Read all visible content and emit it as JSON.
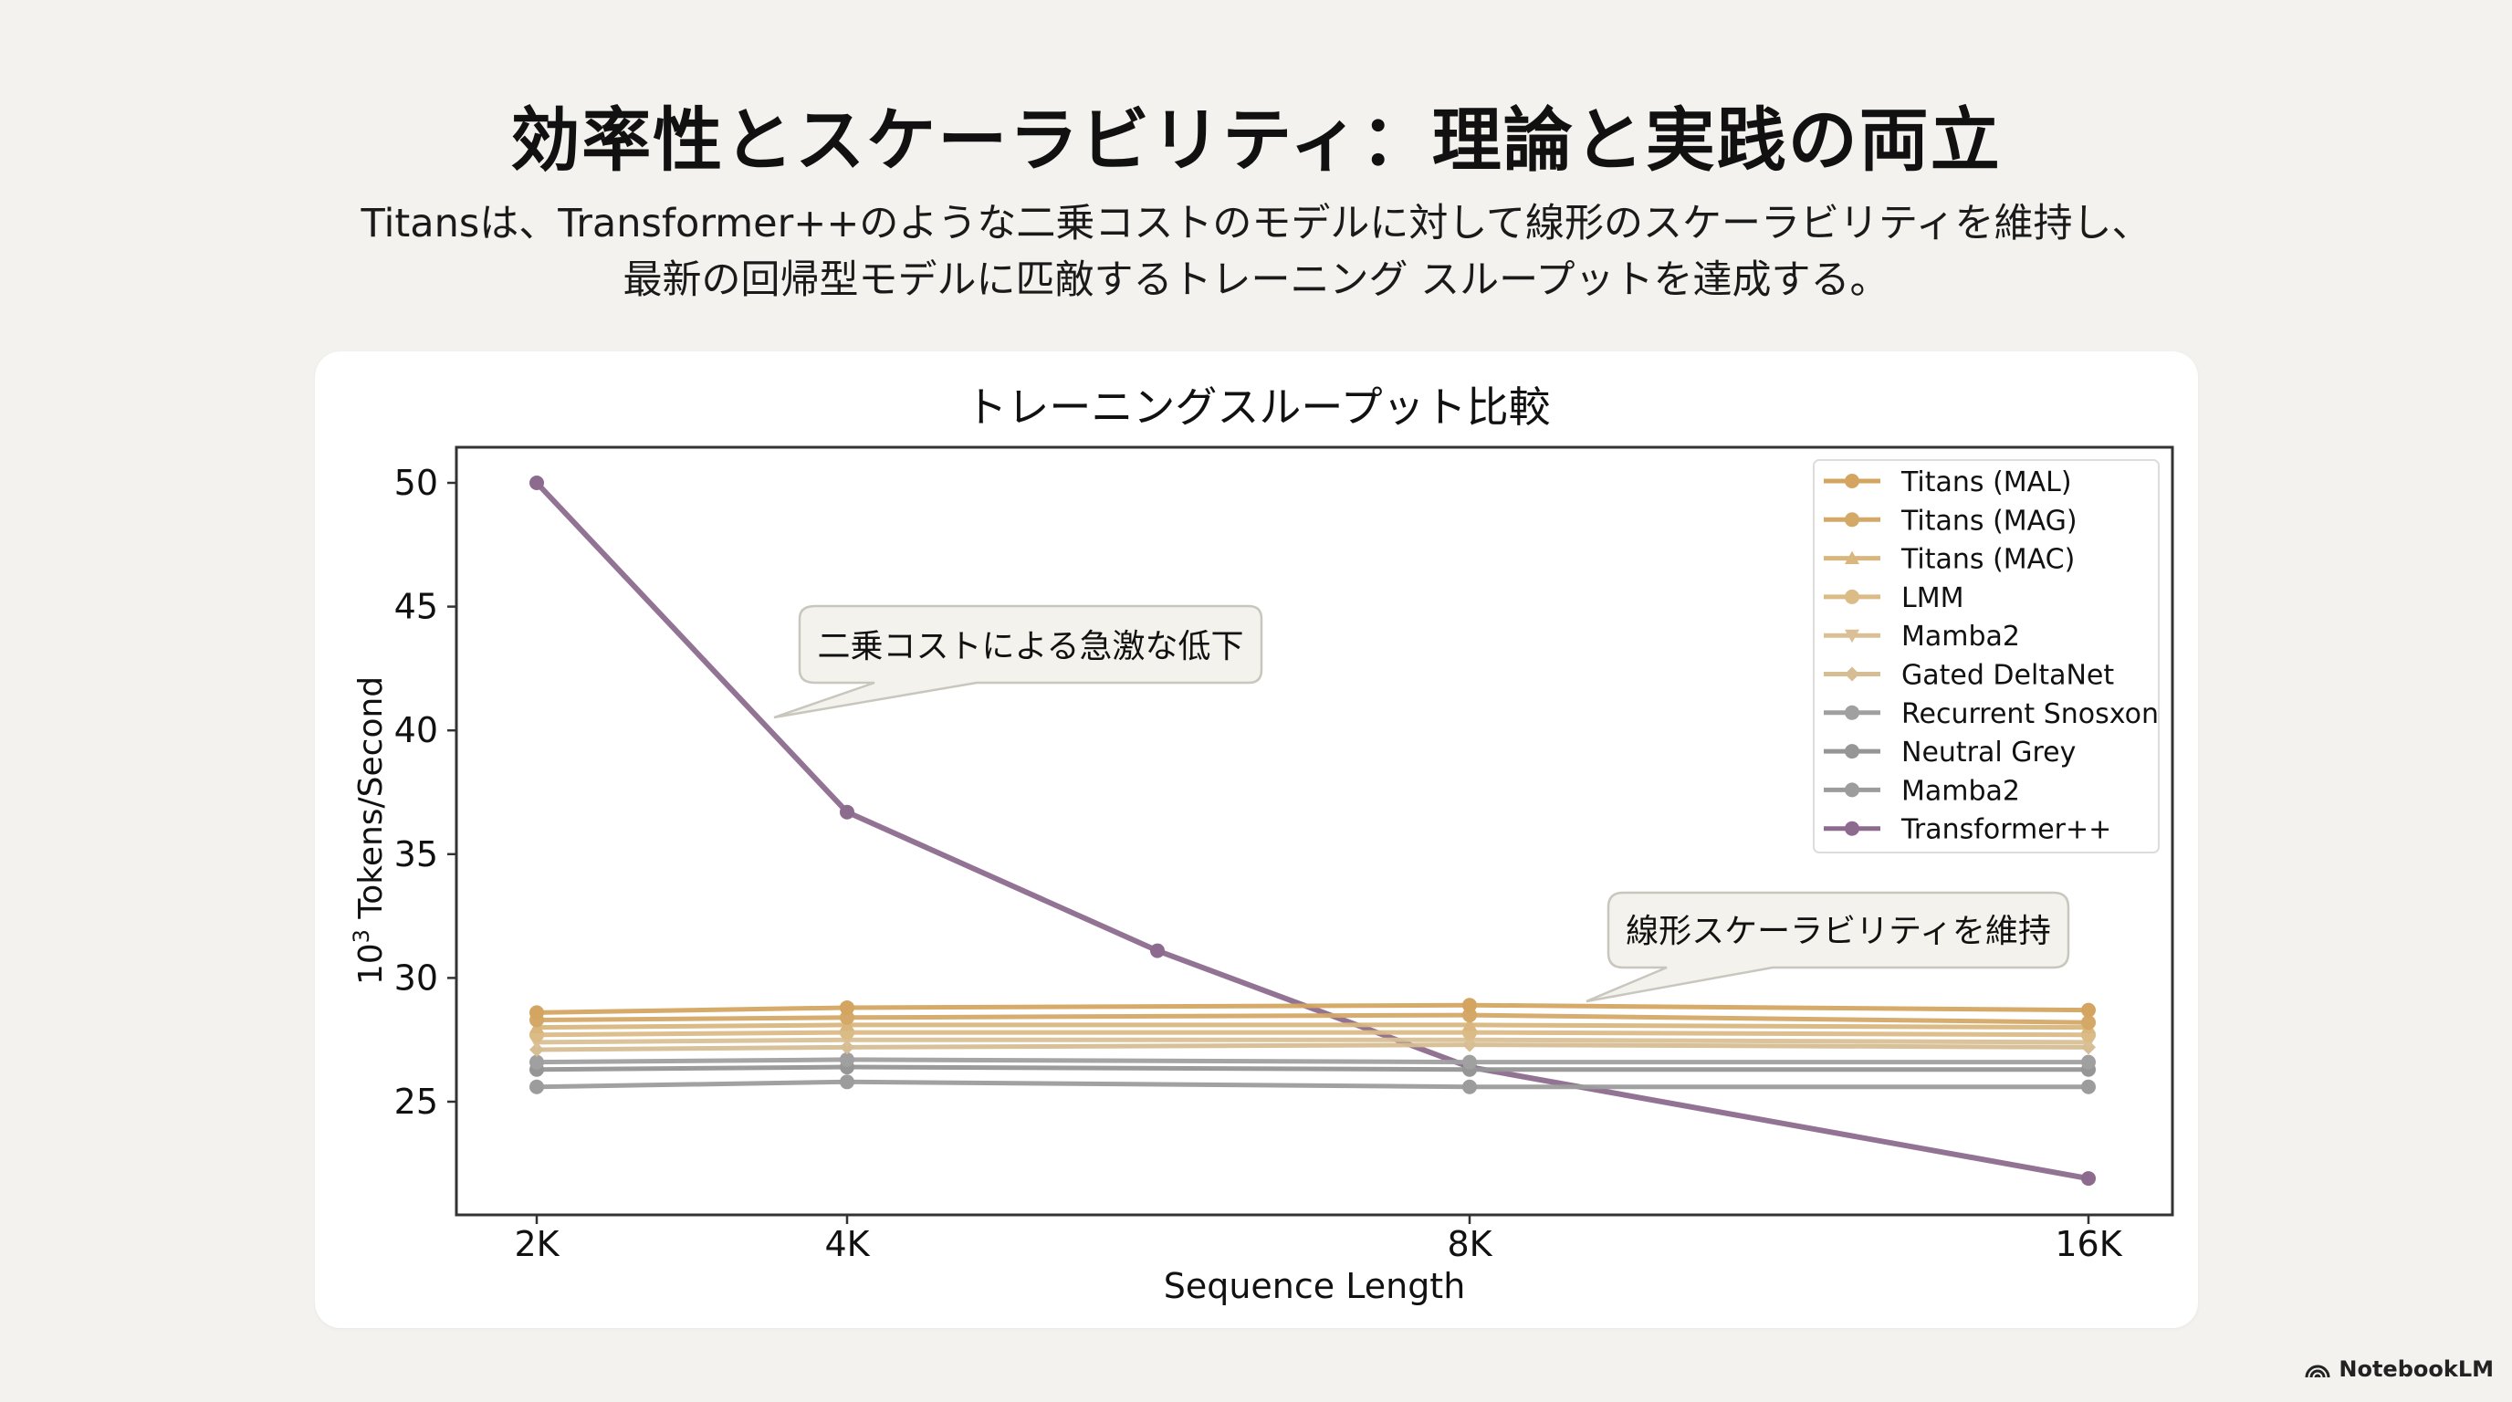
{
  "slide": {
    "title": "効率性とスケーラビリティ：理論と実践の両立",
    "subtitle_line1": "Titansは、Transformer++のような二乗コストのモデルに対して線形のスケーラビリティを維持し、",
    "subtitle_line2": "最新の回帰型モデルに匹敵するトレーニング スループットを達成する。"
  },
  "watermark": {
    "label": "NotebookLM",
    "icon": "notebooklm-logo-icon"
  },
  "colors": {
    "background": "#f3f2ee",
    "card": "#ffffff",
    "titans_orange": "#d4a865",
    "light_tan": "#d9bf8e",
    "grey": "#9a9a9a",
    "transformer_purple": "#8c6b8e",
    "axis": "#333333",
    "callout_bg": "#f3f2ec",
    "callout_border": "#c9c7bd"
  },
  "chart_data": {
    "type": "line",
    "title": "トレーニングスループット比較",
    "xlabel": "Sequence Length",
    "ylabel": "10³ Tokens/Second",
    "ylabel_base": "10",
    "ylabel_exp": "3",
    "ylabel_rest": " Tokens/Second",
    "x_ticks": [
      "2K",
      "4K",
      "8K",
      "16K"
    ],
    "y_ticks": [
      25,
      30,
      35,
      40,
      45,
      50
    ],
    "ylim": [
      20.4,
      51.2
    ],
    "grid": false,
    "legend_position": "upper right",
    "x": [
      "2K",
      "4K",
      "8K",
      "16K"
    ],
    "series": [
      {
        "name": "Titans (MAL)",
        "color": "#d4a560",
        "marker": "circle",
        "values": [
          28.6,
          28.8,
          28.9,
          28.7
        ]
      },
      {
        "name": "Titans (MAG)",
        "color": "#d4a867",
        "marker": "circle",
        "values": [
          28.3,
          28.4,
          28.5,
          28.2
        ]
      },
      {
        "name": "Titans (MAC)",
        "color": "#d8b67e",
        "marker": "triangle-up",
        "values": [
          28.0,
          28.1,
          28.1,
          28.0
        ]
      },
      {
        "name": "LMM",
        "color": "#dbbb86",
        "marker": "circle",
        "values": [
          27.7,
          27.8,
          27.8,
          27.7
        ]
      },
      {
        "name": "Mamba2",
        "color": "#d9c096",
        "marker": "triangle-down",
        "values": [
          27.4,
          27.5,
          27.5,
          27.4
        ]
      },
      {
        "name": "Gated DeltaNet",
        "color": "#d6bd94",
        "marker": "diamond",
        "values": [
          27.1,
          27.2,
          27.3,
          27.2
        ]
      },
      {
        "name": "Recurrent Snosxon",
        "color": "#a0a0a0",
        "marker": "circle",
        "values": [
          26.6,
          26.7,
          26.6,
          26.6
        ]
      },
      {
        "name": "Neutral Grey",
        "color": "#969696",
        "marker": "circle",
        "values": [
          26.3,
          26.4,
          26.3,
          26.3
        ]
      },
      {
        "name": "Mamba2",
        "color": "#9c9c9c",
        "marker": "circle",
        "values": [
          25.6,
          25.8,
          25.6,
          25.6
        ]
      },
      {
        "name": "Transformer++",
        "color": "#8c6b8e",
        "marker": "circle",
        "x": [
          "2K",
          "4K",
          "6K",
          "8K",
          "16K"
        ],
        "values": [
          50.0,
          36.7,
          31.1,
          26.4,
          21.9
        ]
      }
    ],
    "annotations": [
      {
        "text": "二乗コストによる急激な低下",
        "target": "Transformer++ between 2K and 4K"
      },
      {
        "text": "線形スケーラビリティを維持",
        "target": "Titans lines near 8K-16K"
      }
    ]
  }
}
